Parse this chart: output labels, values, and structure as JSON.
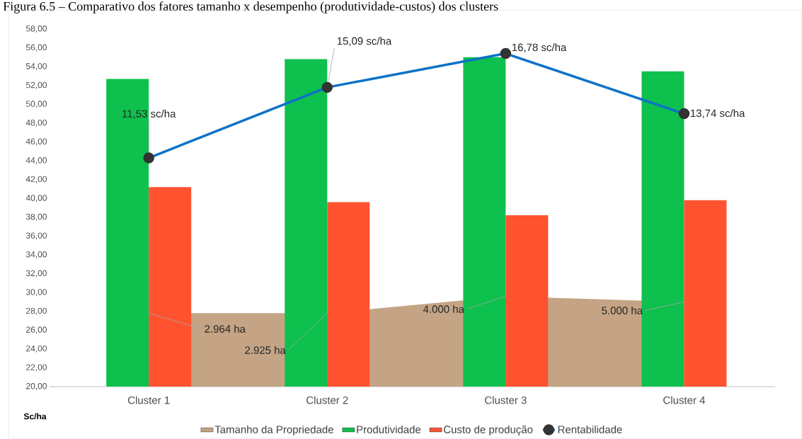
{
  "chart_data": {
    "type": "bar",
    "title": "Figura 6.5 – Comparativo dos fatores tamanho x desempenho (produtividade-custos) dos clusters",
    "ylabel": "Sc/ha",
    "categories": [
      "Cluster 1",
      "Cluster 2",
      "Cluster 3",
      "Cluster 4"
    ],
    "series": [
      {
        "name": "Tamanho da Propriedade",
        "type": "area",
        "color": "#c4a484",
        "values": [
          27.8,
          27.8,
          29.6,
          29.0
        ]
      },
      {
        "name": "Produtividade",
        "color": "#0ec04e",
        "values": [
          52.7,
          54.8,
          55.0,
          53.5
        ]
      },
      {
        "name": "Custo de produção",
        "color": "#ff5330",
        "values": [
          41.2,
          39.6,
          38.2,
          39.8
        ]
      },
      {
        "name": "Rentabilidade",
        "type": "line",
        "color": "#0d72c6",
        "marker": "circle",
        "values": [
          44.3,
          51.8,
          55.4,
          49.0
        ]
      }
    ],
    "annotations": [
      {
        "text": "2.964 ha",
        "x": "Cluster 1",
        "y": 27.8
      },
      {
        "text": "2.925 ha",
        "x": "Cluster 2",
        "y": 27.8
      },
      {
        "text": "4.000 ha",
        "x": "Cluster 3",
        "y": 29.6
      },
      {
        "text": "5.000 ha",
        "x": "Cluster 4",
        "y": 29.0
      },
      {
        "text": "11,53 sc/ha",
        "x": "Cluster 1",
        "y": 44.3
      },
      {
        "text": "15,09 sc/ha",
        "x": "Cluster 2",
        "y": 51.8
      },
      {
        "text": "16,78 sc/ha",
        "x": "Cluster 3",
        "y": 55.4
      },
      {
        "text": "13,74 sc/ha",
        "x": "Cluster 4",
        "y": 49.0
      }
    ],
    "ylim": [
      20,
      58
    ],
    "yticks": [
      {
        "value": 20,
        "label": "20,00"
      },
      {
        "value": 22,
        "label": "22,00"
      },
      {
        "value": 24,
        "label": "24,00"
      },
      {
        "value": 26,
        "label": "26,00"
      },
      {
        "value": 28,
        "label": "28,00"
      },
      {
        "value": 30,
        "label": "30,00"
      },
      {
        "value": 32,
        "label": "32,00"
      },
      {
        "value": 34,
        "label": "34,00"
      },
      {
        "value": 36,
        "label": "36,00"
      },
      {
        "value": 38,
        "label": "38,00"
      },
      {
        "value": 40,
        "label": "40,00"
      },
      {
        "value": 42,
        "label": "42,00"
      },
      {
        "value": 44,
        "label": "44,00"
      },
      {
        "value": 46,
        "label": "46,00"
      },
      {
        "value": 48,
        "label": "48,00"
      },
      {
        "value": 50,
        "label": "50,00"
      },
      {
        "value": 52,
        "label": "52,00"
      },
      {
        "value": 54,
        "label": "54,00"
      },
      {
        "value": 56,
        "label": "56,00"
      },
      {
        "value": 58,
        "label": "58,00"
      }
    ],
    "legend": "bottom",
    "grid": false
  }
}
